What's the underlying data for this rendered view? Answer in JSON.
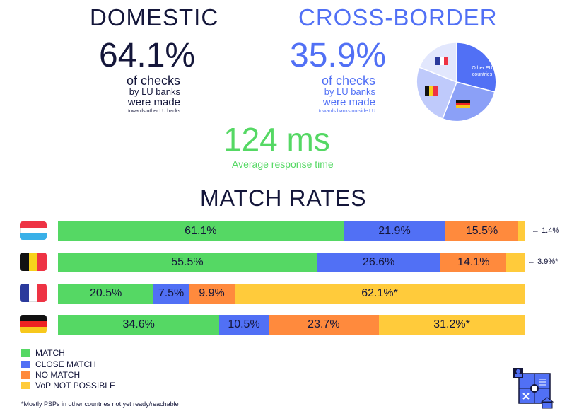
{
  "domestic": {
    "title": "DOMESTIC",
    "value": "64.1%",
    "line1": "of checks",
    "line2": "by LU banks",
    "line3": "were made",
    "note": "towards other LU banks"
  },
  "cross": {
    "title": "CROSS-BORDER",
    "value": "35.9%",
    "line1": "of checks",
    "line2": "by LU banks",
    "line3": "were made",
    "note": "towards banks outside LU",
    "pie_label": "Other EU countries"
  },
  "response": {
    "value": "124 ms",
    "label": "Average response time"
  },
  "colors": {
    "match": "#55d864",
    "close": "#5170f5",
    "nomatch": "#ff8a3d",
    "notpossible": "#ffcb3b",
    "navy": "#14163a",
    "green": "#55d864",
    "blue": "#5170f5"
  },
  "chart_data": {
    "type": "bar",
    "title": "MATCH RATES",
    "categories": [
      "Luxembourg",
      "Belgium",
      "France",
      "Germany"
    ],
    "series": [
      {
        "name": "MATCH",
        "values": [
          61.1,
          55.5,
          20.5,
          34.6
        ],
        "labels": [
          "61.1%",
          "55.5%",
          "20.5%",
          "34.6%"
        ]
      },
      {
        "name": "CLOSE MATCH",
        "values": [
          21.9,
          26.6,
          7.5,
          10.5
        ],
        "labels": [
          "21.9%",
          "26.6%",
          "7.5%",
          "10.5%"
        ]
      },
      {
        "name": "NO MATCH",
        "values": [
          15.5,
          14.1,
          9.9,
          23.7
        ],
        "labels": [
          "15.5%",
          "14.1%",
          "9.9%",
          "23.7%"
        ]
      },
      {
        "name": "VoP NOT POSSIBLE",
        "values": [
          1.4,
          3.9,
          62.1,
          31.2
        ],
        "labels": [
          "1.4%",
          "3.9%*",
          "62.1%*",
          "31.2%*"
        ]
      }
    ]
  },
  "legend": [
    "MATCH",
    "CLOSE MATCH",
    "NO MATCH",
    "VoP NOT POSSIBLE"
  ],
  "footnote": "*Mostly PSPs in other countries not yet ready/reachable"
}
